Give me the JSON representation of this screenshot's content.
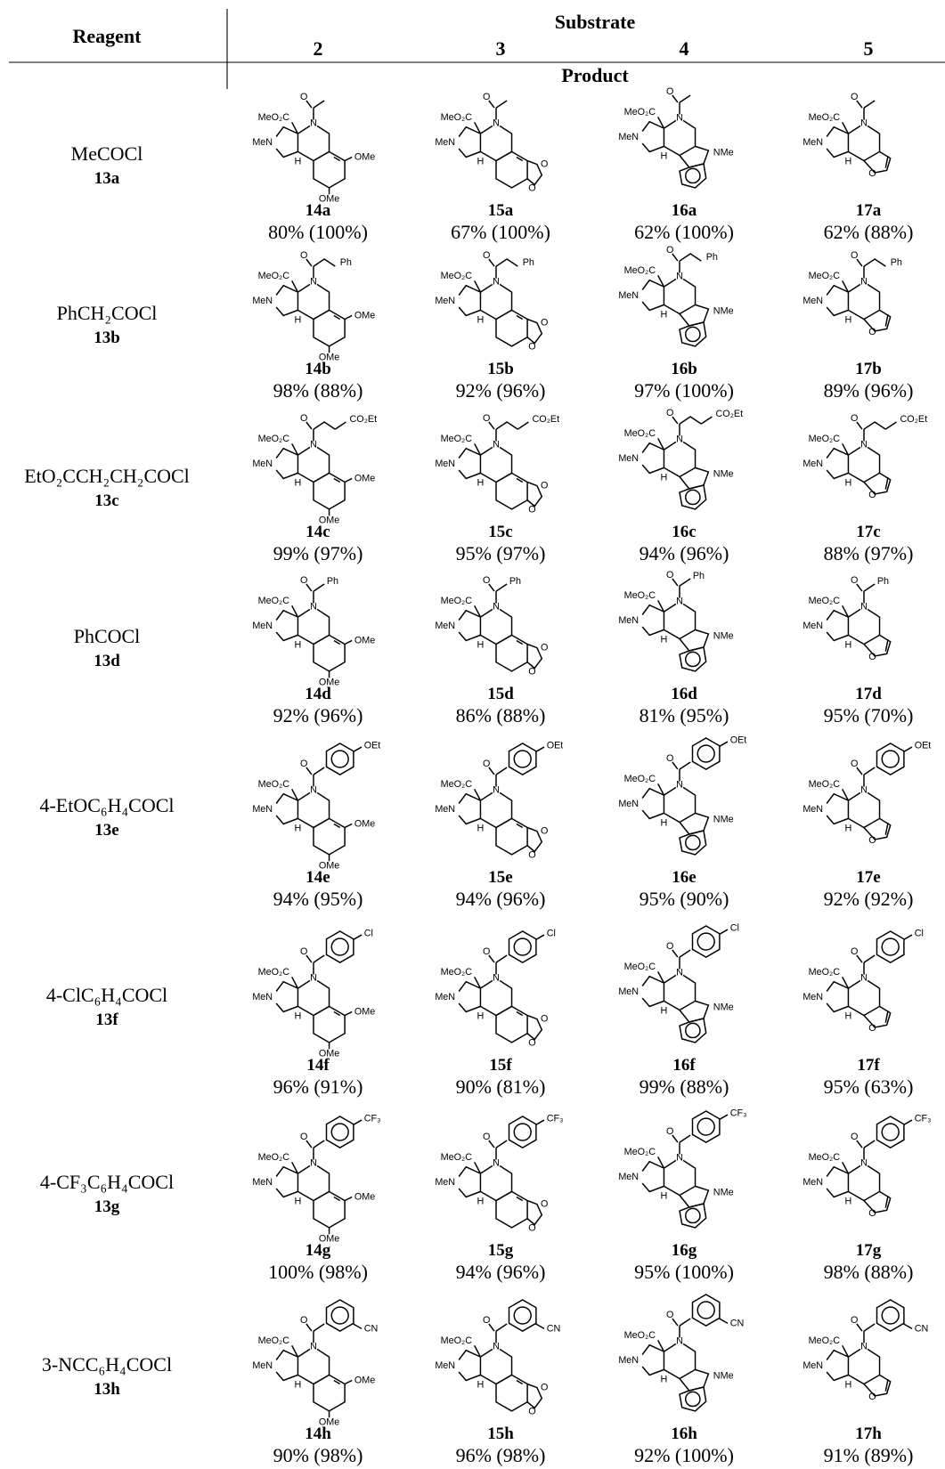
{
  "header": {
    "reagent": "Reagent",
    "substrate": "Substrate",
    "product": "Product",
    "substrates": [
      "2",
      "3",
      "4",
      "5"
    ]
  },
  "structure_labels": {
    "ester": "MeO₂C",
    "amine": "MeN",
    "nitrogen": "N",
    "hydrogen": "H",
    "carbonyl": "O",
    "substrates": [
      [
        "OMe",
        "OMe"
      ],
      [
        "O",
        "O"
      ],
      [
        "NMe"
      ],
      [
        "O"
      ]
    ]
  },
  "rows": [
    {
      "reagent": "MeCOCl",
      "reagent_id": "13a",
      "products": [
        {
          "id": "14a",
          "yield": "80% (100%)"
        },
        {
          "id": "15a",
          "yield": "67% (100%)"
        },
        {
          "id": "16a",
          "yield": "62% (100%)"
        },
        {
          "id": "17a",
          "yield": "62% (88%)"
        }
      ]
    },
    {
      "reagent": "PhCH₂COCl",
      "reagent_id": "13b",
      "substituent": "Ph",
      "products": [
        {
          "id": "14b",
          "yield": "98% (88%)"
        },
        {
          "id": "15b",
          "yield": "92% (96%)"
        },
        {
          "id": "16b",
          "yield": "97% (100%)"
        },
        {
          "id": "17b",
          "yield": "89% (96%)"
        }
      ]
    },
    {
      "reagent": "EtO₂CCH₂CH₂COCl",
      "reagent_id": "13c",
      "substituent": "CO₂Et",
      "products": [
        {
          "id": "14c",
          "yield": "99% (97%)"
        },
        {
          "id": "15c",
          "yield": "95% (97%)"
        },
        {
          "id": "16c",
          "yield": "94% (96%)"
        },
        {
          "id": "17c",
          "yield": "88% (97%)"
        }
      ]
    },
    {
      "reagent": "PhCOCl",
      "reagent_id": "13d",
      "substituent": "Ph",
      "products": [
        {
          "id": "14d",
          "yield": "92% (96%)"
        },
        {
          "id": "15d",
          "yield": "86% (88%)"
        },
        {
          "id": "16d",
          "yield": "81% (95%)"
        },
        {
          "id": "17d",
          "yield": "95% (70%)"
        }
      ]
    },
    {
      "reagent": "4-EtOC₆H₄COCl",
      "reagent_id": "13e",
      "substituent": "OEt",
      "products": [
        {
          "id": "14e",
          "yield": "94% (95%)"
        },
        {
          "id": "15e",
          "yield": "94% (96%)"
        },
        {
          "id": "16e",
          "yield": "95% (90%)"
        },
        {
          "id": "17e",
          "yield": "92% (92%)"
        }
      ]
    },
    {
      "reagent": "4-ClC₆H₄COCl",
      "reagent_id": "13f",
      "substituent": "Cl",
      "products": [
        {
          "id": "14f",
          "yield": "96% (91%)"
        },
        {
          "id": "15f",
          "yield": "90% (81%)"
        },
        {
          "id": "16f",
          "yield": "99% (88%)"
        },
        {
          "id": "17f",
          "yield": "95% (63%)"
        }
      ]
    },
    {
      "reagent": "4-CF₃C₆H₄COCl",
      "reagent_id": "13g",
      "substituent": "CF₃",
      "products": [
        {
          "id": "14g",
          "yield": "100% (98%)"
        },
        {
          "id": "15g",
          "yield": "94% (96%)"
        },
        {
          "id": "16g",
          "yield": "95% (100%)"
        },
        {
          "id": "17g",
          "yield": "98% (88%)"
        }
      ]
    },
    {
      "reagent": "3-NCC₆H₄COCl",
      "reagent_id": "13h",
      "substituent": "CN",
      "products": [
        {
          "id": "14h",
          "yield": "90% (98%)"
        },
        {
          "id": "15h",
          "yield": "96% (98%)"
        },
        {
          "id": "16h",
          "yield": "92% (100%)"
        },
        {
          "id": "17h",
          "yield": "91% (89%)"
        }
      ]
    }
  ]
}
